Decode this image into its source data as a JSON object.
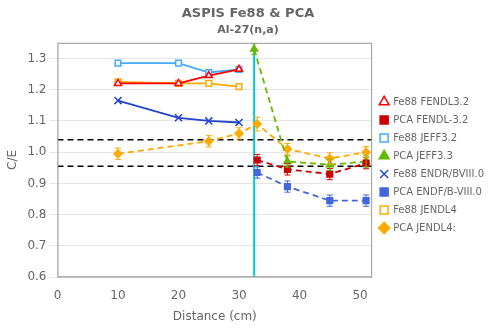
{
  "chart_data": {
    "type": "line",
    "title": "ASPIS Fe88 & PCA",
    "subtitle": "Al-27(n,a)",
    "x_label": "Distance (cm)",
    "y_label": "C/E",
    "xlim": [
      0,
      52
    ],
    "ylim": [
      0.6,
      1.35
    ],
    "xticks": [
      0,
      10,
      20,
      30,
      40,
      50
    ],
    "yticks": [
      0.6,
      0.7,
      0.8,
      0.9,
      {
        "value": 1,
        "label": "1.0"
      },
      1.1,
      1.2,
      1.3
    ],
    "grid": "y",
    "legend": "right",
    "reference_lines": [
      {
        "y": 1.04,
        "line_style": "dashed",
        "color": "#000000"
      },
      {
        "y": 0.955,
        "line_style": "dashed",
        "color": "#000000"
      },
      {
        "x": 32.5,
        "line_style": "solid",
        "color": "#00cccc"
      }
    ],
    "series": [
      {
        "name": "Fe88 FENDL3.2",
        "color": "#ff0000",
        "line_style": "solid",
        "marker": "triangle-open",
        "x": [
          10,
          20,
          25,
          30
        ],
        "values": [
          1.22,
          1.22,
          1.245,
          1.265
        ]
      },
      {
        "name": "PCA FENDL-3.2",
        "color": "#cc0000",
        "line_style": "dashed",
        "marker": "square",
        "x": [
          33,
          38,
          45,
          51
        ],
        "values": [
          0.975,
          0.945,
          0.93,
          0.965
        ],
        "errors": [
          0.018,
          0.018,
          0.018,
          0.018
        ]
      },
      {
        "name": "Fe88 JEFF3.2",
        "color": "#44aaff",
        "line_style": "solid",
        "marker": "square-open",
        "x": [
          10,
          20,
          25,
          30
        ],
        "values": [
          1.285,
          1.285,
          1.255,
          1.265
        ]
      },
      {
        "name": "PCA JEFF3.3",
        "color": "#66bb00",
        "line_style": "dashed",
        "marker": "triangle",
        "x": [
          32.5,
          38,
          45,
          51
        ],
        "values": [
          1.33,
          0.97,
          0.96,
          0.97
        ],
        "errors": [
          0.018,
          0.018,
          0.018,
          0.018
        ]
      },
      {
        "name": "Fe88 ENDR/BVIII.0",
        "color": "#2244cc",
        "line_style": "solid",
        "marker": "x",
        "x": [
          10,
          20,
          25,
          30
        ],
        "values": [
          1.165,
          1.11,
          1.1,
          1.095
        ]
      },
      {
        "name": "PCA ENDF/B-VIII.0",
        "color": "#4466dd",
        "line_style": "dashed",
        "marker": "square",
        "x": [
          33,
          38,
          45,
          51
        ],
        "values": [
          0.935,
          0.89,
          0.845,
          0.845
        ],
        "errors": [
          0.018,
          0.018,
          0.018,
          0.018
        ]
      },
      {
        "name": "Fe88 JENDL4",
        "color": "#ffaa00",
        "line_style": "solid",
        "marker": "square-open",
        "x": [
          10,
          20,
          25,
          30
        ],
        "values": [
          1.225,
          1.22,
          1.22,
          1.21
        ]
      },
      {
        "name": "PCA JENDL4:",
        "color": "#ffaa00",
        "line_style": "dashed",
        "marker": "diamond",
        "x": [
          10,
          25,
          30,
          33,
          38,
          45,
          51
        ],
        "values": [
          0.995,
          1.035,
          1.06,
          1.09,
          1.01,
          0.98,
          1.0
        ],
        "errors": [
          0.018,
          0.018,
          0.018,
          0.022,
          0.018,
          0.018,
          0.018
        ]
      }
    ]
  }
}
